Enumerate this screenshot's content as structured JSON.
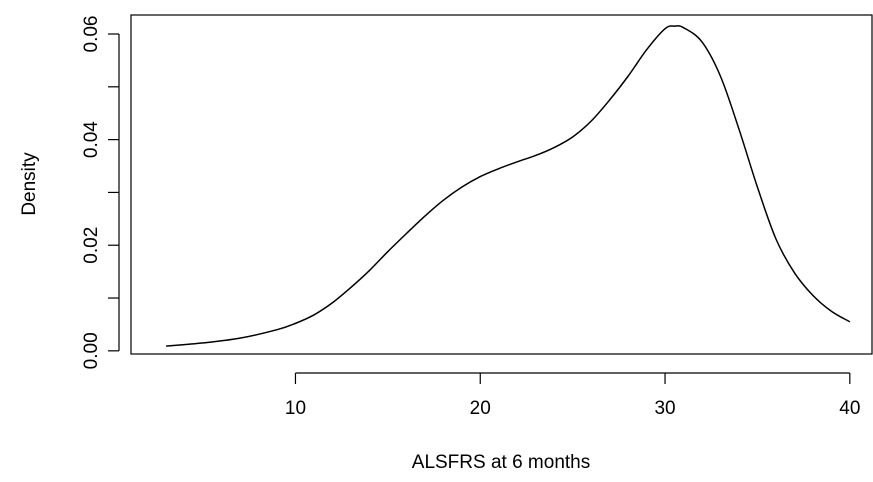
{
  "chart_data": {
    "type": "line",
    "title": "",
    "xlabel": "ALSFRS at 6 months",
    "ylabel": "Density",
    "xlim": [
      1.1,
      41.2
    ],
    "ylim": [
      -0.0006,
      0.0636
    ],
    "x_ticks": [
      {
        "value": 10,
        "label": "10"
      },
      {
        "value": 20,
        "label": "20"
      },
      {
        "value": 30,
        "label": "30"
      },
      {
        "value": 40,
        "label": "40"
      }
    ],
    "y_ticks": [
      {
        "value": 0.0,
        "label": "0.00",
        "labeled": true
      },
      {
        "value": 0.01,
        "label": "",
        "labeled": false
      },
      {
        "value": 0.02,
        "label": "0.02",
        "labeled": true
      },
      {
        "value": 0.03,
        "label": "",
        "labeled": false
      },
      {
        "value": 0.04,
        "label": "0.04",
        "labeled": true
      },
      {
        "value": 0.05,
        "label": "",
        "labeled": false
      },
      {
        "value": 0.06,
        "label": "0.06",
        "labeled": true
      }
    ],
    "grid": false,
    "line_color": "#000000",
    "series": [
      {
        "x": [
          3,
          5,
          7,
          9,
          10,
          11,
          12,
          13,
          14,
          15,
          16,
          17,
          18,
          19,
          20,
          21,
          22,
          23,
          24,
          25,
          26,
          27,
          28,
          29,
          30,
          30.5,
          31,
          32,
          33,
          34,
          35,
          36,
          37,
          38,
          39,
          40
        ],
        "y": [
          0.0009,
          0.0015,
          0.0024,
          0.004,
          0.0052,
          0.0068,
          0.0091,
          0.012,
          0.0152,
          0.0188,
          0.0222,
          0.0255,
          0.0285,
          0.031,
          0.033,
          0.0345,
          0.0358,
          0.037,
          0.0385,
          0.0405,
          0.0435,
          0.0475,
          0.052,
          0.057,
          0.061,
          0.0615,
          0.0612,
          0.0585,
          0.052,
          0.042,
          0.031,
          0.0212,
          0.0148,
          0.0105,
          0.0075,
          0.0055
        ]
      }
    ]
  }
}
